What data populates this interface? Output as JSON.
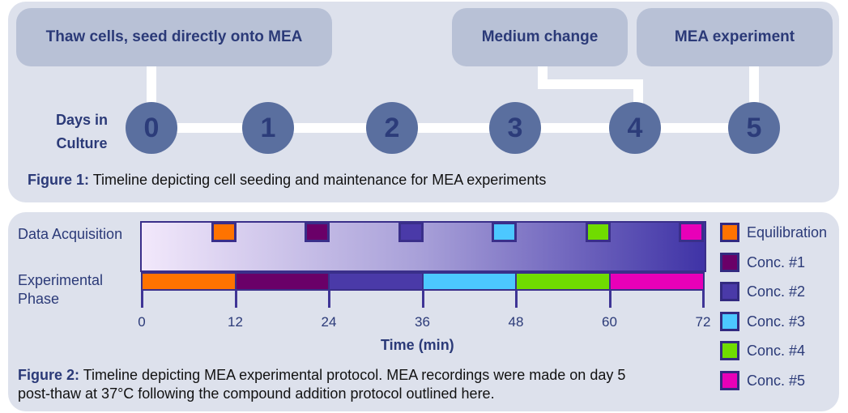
{
  "figure1": {
    "boxes": [
      "Thaw cells, seed directly onto MEA",
      "Medium change",
      "MEA experiment"
    ],
    "days_label_1": "Days in",
    "days_label_2": "Culture",
    "days": [
      "0",
      "1",
      "2",
      "3",
      "4",
      "5"
    ],
    "caption_bold": "Figure 1:",
    "caption": " Timeline depicting cell seeding and maintenance for MEA experiments"
  },
  "figure2": {
    "row_labels": {
      "acquisition": "Data Acquisition",
      "phase_1": "Experimental",
      "phase_2": "Phase"
    },
    "xlabel": "Time (min)",
    "ticks": [
      "0",
      "12",
      "24",
      "36",
      "48",
      "60",
      "72"
    ],
    "phases": [
      {
        "name": "Equilibration",
        "start": 0,
        "end": 12,
        "color": "#ff7300"
      },
      {
        "name": "Conc. #1",
        "start": 12,
        "end": 24,
        "color": "#6a0068"
      },
      {
        "name": "Conc. #2",
        "start": 24,
        "end": 36,
        "color": "#4a3aa8"
      },
      {
        "name": "Conc. #3",
        "start": 36,
        "end": 48,
        "color": "#4cc8ff"
      },
      {
        "name": "Conc. #4",
        "start": 48,
        "end": 60,
        "color": "#70dc00"
      },
      {
        "name": "Conc. #5",
        "start": 60,
        "end": 72,
        "color": "#e800b8"
      }
    ],
    "acquisition_minutes": 3,
    "caption_bold": "Figure 2:",
    "caption_1": " Timeline depicting MEA experimental protocol. MEA recordings were made on day 5",
    "caption_2": "post-thaw at 37°C following the compound addition protocol outlined here."
  }
}
